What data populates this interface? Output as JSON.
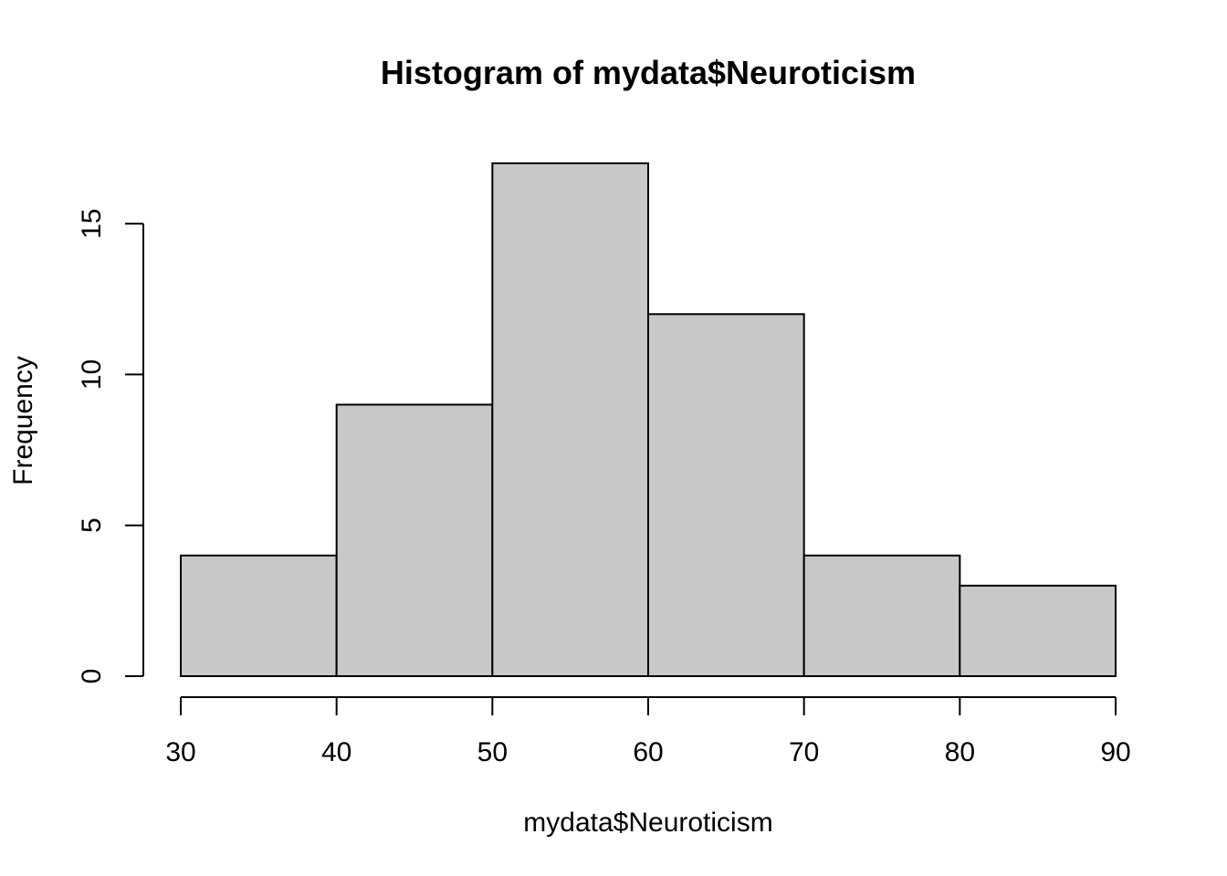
{
  "chart_data": {
    "type": "bar",
    "title": "Histogram of mydata$Neuroticism",
    "xlabel": "mydata$Neuroticism",
    "ylabel": "Frequency",
    "bins": [
      {
        "from": 30,
        "to": 40,
        "count": 4
      },
      {
        "from": 40,
        "to": 50,
        "count": 9
      },
      {
        "from": 50,
        "to": 60,
        "count": 17
      },
      {
        "from": 60,
        "to": 70,
        "count": 12
      },
      {
        "from": 70,
        "to": 80,
        "count": 4
      },
      {
        "from": 80,
        "to": 90,
        "count": 3
      }
    ],
    "xlim": [
      30,
      90
    ],
    "ylim": [
      0,
      17
    ],
    "x_ticks": [
      30,
      40,
      50,
      60,
      70,
      80,
      90
    ],
    "y_ticks": [
      0,
      5,
      10,
      15
    ],
    "bar_color": "#c8c8c8",
    "grid": false,
    "legend": "none"
  }
}
